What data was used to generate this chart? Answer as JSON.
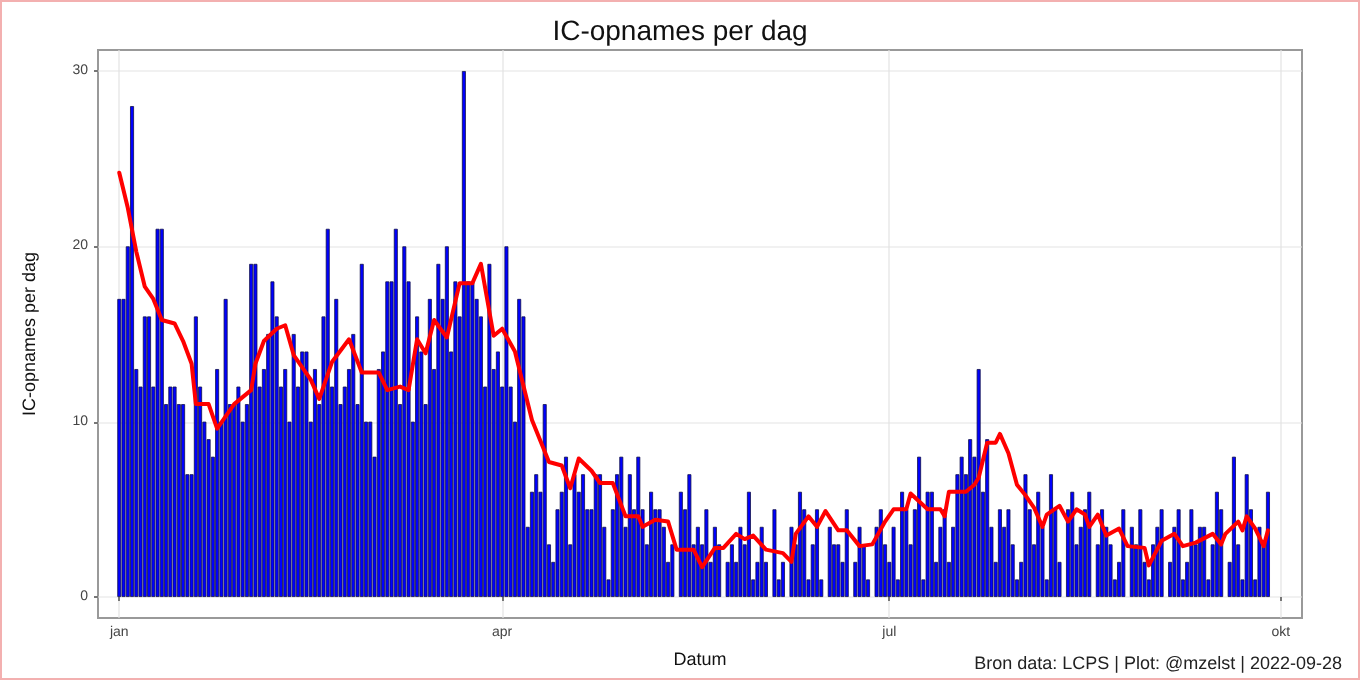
{
  "chart_data": {
    "type": "bar",
    "title": "IC-opnames per dag",
    "xlabel": "Datum",
    "ylabel": "IC-opnames per dag",
    "annotations": [
      "Bron data: LCPS | Plot: @mzelst | 2022-09-28"
    ],
    "xlim": [
      "2021-12-27",
      "2022-10-06"
    ],
    "xticks": [
      {
        "value": "2022-01-01",
        "label": "jan"
      },
      {
        "value": "2022-04-01",
        "label": "apr"
      },
      {
        "value": "2022-07-01",
        "label": "jul"
      },
      {
        "value": "2022-10-01",
        "label": "okt"
      }
    ],
    "ylim": [
      -1.2,
      31.2
    ],
    "yticks": [
      0,
      10,
      20,
      30
    ],
    "grid": true,
    "x": [
      "2022-01-01",
      "2022-01-02",
      "2022-01-03",
      "2022-01-04",
      "2022-01-05",
      "2022-01-06",
      "2022-01-07",
      "2022-01-08",
      "2022-01-09",
      "2022-01-10",
      "2022-01-11",
      "2022-01-12",
      "2022-01-13",
      "2022-01-14",
      "2022-01-15",
      "2022-01-16",
      "2022-01-17",
      "2022-01-18",
      "2022-01-19",
      "2022-01-20",
      "2022-01-21",
      "2022-01-22",
      "2022-01-23",
      "2022-01-24",
      "2022-01-25",
      "2022-01-26",
      "2022-01-27",
      "2022-01-28",
      "2022-01-29",
      "2022-01-30",
      "2022-01-31",
      "2022-02-01",
      "2022-02-02",
      "2022-02-03",
      "2022-02-04",
      "2022-02-05",
      "2022-02-06",
      "2022-02-07",
      "2022-02-08",
      "2022-02-09",
      "2022-02-10",
      "2022-02-11",
      "2022-02-12",
      "2022-02-13",
      "2022-02-14",
      "2022-02-15",
      "2022-02-16",
      "2022-02-17",
      "2022-02-18",
      "2022-02-19",
      "2022-02-20",
      "2022-02-21",
      "2022-02-22",
      "2022-02-23",
      "2022-02-24",
      "2022-02-25",
      "2022-02-26",
      "2022-02-27",
      "2022-02-28",
      "2022-03-01",
      "2022-03-02",
      "2022-03-03",
      "2022-03-04",
      "2022-03-05",
      "2022-03-06",
      "2022-03-07",
      "2022-03-08",
      "2022-03-09",
      "2022-03-10",
      "2022-03-11",
      "2022-03-12",
      "2022-03-13",
      "2022-03-14",
      "2022-03-15",
      "2022-03-16",
      "2022-03-17",
      "2022-03-18",
      "2022-03-19",
      "2022-03-20",
      "2022-03-21",
      "2022-03-22",
      "2022-03-23",
      "2022-03-24",
      "2022-03-25",
      "2022-03-26",
      "2022-03-27",
      "2022-03-28",
      "2022-03-29",
      "2022-03-30",
      "2022-03-31",
      "2022-04-01",
      "2022-04-02",
      "2022-04-03",
      "2022-04-04",
      "2022-04-05",
      "2022-04-06",
      "2022-04-07",
      "2022-04-08",
      "2022-04-09",
      "2022-04-10",
      "2022-04-11",
      "2022-04-12",
      "2022-04-13",
      "2022-04-14",
      "2022-04-15",
      "2022-04-16",
      "2022-04-17",
      "2022-04-18",
      "2022-04-19",
      "2022-04-20",
      "2022-04-21",
      "2022-04-22",
      "2022-04-23",
      "2022-04-24",
      "2022-04-25",
      "2022-04-26",
      "2022-04-27",
      "2022-04-28",
      "2022-04-29",
      "2022-04-30",
      "2022-05-01",
      "2022-05-02",
      "2022-05-03",
      "2022-05-04",
      "2022-05-05",
      "2022-05-06",
      "2022-05-07",
      "2022-05-08",
      "2022-05-09",
      "2022-05-10",
      "2022-05-11",
      "2022-05-12",
      "2022-05-13",
      "2022-05-14",
      "2022-05-15",
      "2022-05-16",
      "2022-05-17",
      "2022-05-18",
      "2022-05-19",
      "2022-05-20",
      "2022-05-21",
      "2022-05-22",
      "2022-05-23",
      "2022-05-24",
      "2022-05-25",
      "2022-05-26",
      "2022-05-27",
      "2022-05-28",
      "2022-05-29",
      "2022-05-30",
      "2022-05-31",
      "2022-06-01",
      "2022-06-02",
      "2022-06-03",
      "2022-06-04",
      "2022-06-05",
      "2022-06-06",
      "2022-06-07",
      "2022-06-08",
      "2022-06-09",
      "2022-06-10",
      "2022-06-11",
      "2022-06-12",
      "2022-06-13",
      "2022-06-14",
      "2022-06-15",
      "2022-06-16",
      "2022-06-17",
      "2022-06-18",
      "2022-06-19",
      "2022-06-20",
      "2022-06-21",
      "2022-06-22",
      "2022-06-23",
      "2022-06-24",
      "2022-06-25",
      "2022-06-26",
      "2022-06-27",
      "2022-06-28",
      "2022-06-29",
      "2022-06-30",
      "2022-07-01",
      "2022-07-02",
      "2022-07-03",
      "2022-07-04",
      "2022-07-05",
      "2022-07-06",
      "2022-07-07",
      "2022-07-08",
      "2022-07-09",
      "2022-07-10",
      "2022-07-11",
      "2022-07-12",
      "2022-07-13",
      "2022-07-14",
      "2022-07-15",
      "2022-07-16",
      "2022-07-17",
      "2022-07-18",
      "2022-07-19",
      "2022-07-20",
      "2022-07-21",
      "2022-07-22",
      "2022-07-23",
      "2022-07-24",
      "2022-07-25",
      "2022-07-26",
      "2022-07-27",
      "2022-07-28",
      "2022-07-29",
      "2022-07-30",
      "2022-07-31",
      "2022-08-01",
      "2022-08-02",
      "2022-08-03",
      "2022-08-04",
      "2022-08-05",
      "2022-08-06",
      "2022-08-07",
      "2022-08-08",
      "2022-08-09",
      "2022-08-10",
      "2022-08-11",
      "2022-08-12",
      "2022-08-13",
      "2022-08-14",
      "2022-08-15",
      "2022-08-16",
      "2022-08-17",
      "2022-08-18",
      "2022-08-19",
      "2022-08-20",
      "2022-08-21",
      "2022-08-22",
      "2022-08-23",
      "2022-08-24",
      "2022-08-25",
      "2022-08-26",
      "2022-08-27",
      "2022-08-28",
      "2022-08-29",
      "2022-08-30",
      "2022-08-31",
      "2022-09-01",
      "2022-09-02",
      "2022-09-03",
      "2022-09-04",
      "2022-09-05",
      "2022-09-06",
      "2022-09-07",
      "2022-09-08",
      "2022-09-09",
      "2022-09-10",
      "2022-09-11",
      "2022-09-12",
      "2022-09-13",
      "2022-09-14",
      "2022-09-15",
      "2022-09-16",
      "2022-09-17",
      "2022-09-18",
      "2022-09-19",
      "2022-09-20",
      "2022-09-21",
      "2022-09-22",
      "2022-09-23",
      "2022-09-24",
      "2022-09-25",
      "2022-09-26",
      "2022-09-27",
      "2022-09-28"
    ],
    "series": [
      {
        "color": "#0000ff",
        "values": [
          17,
          17,
          20,
          28,
          13,
          12,
          16,
          16,
          12,
          21,
          21,
          11,
          12,
          12,
          11,
          11,
          7,
          7,
          16,
          12,
          10,
          9,
          8,
          13,
          10,
          17,
          11,
          11,
          12,
          10,
          11,
          19,
          19,
          12,
          13,
          15,
          18,
          16,
          12,
          13,
          10,
          15,
          12,
          14,
          14,
          10,
          13,
          11,
          16,
          21,
          12,
          17,
          11,
          12,
          13,
          15,
          11,
          19,
          10,
          10,
          8,
          13,
          14,
          18,
          18,
          21,
          11,
          20,
          18,
          10,
          16,
          14,
          11,
          17,
          13,
          19,
          17,
          20,
          14,
          18,
          16,
          30,
          18,
          18,
          17,
          16,
          12,
          19,
          13,
          14,
          12,
          20,
          12,
          10,
          17,
          16,
          4,
          6,
          7,
          6,
          11,
          3,
          2,
          5,
          6,
          8,
          3,
          7,
          6,
          7,
          5,
          5,
          7,
          7,
          4,
          1,
          5,
          7,
          8,
          4,
          7,
          5,
          8,
          5,
          3,
          6,
          5,
          5,
          4,
          2,
          3,
          0,
          6,
          5,
          7,
          3,
          4,
          3,
          5,
          2,
          4,
          3,
          0,
          2,
          3,
          2,
          4,
          3,
          6,
          1,
          2,
          4,
          2,
          0,
          5,
          1,
          2,
          0,
          4,
          3,
          6,
          5,
          1,
          3,
          5,
          1,
          0,
          4,
          3,
          3,
          2,
          5,
          0,
          2,
          4,
          3,
          1,
          0,
          4,
          5,
          3,
          2,
          4,
          1,
          6,
          5,
          3,
          5,
          8,
          1,
          6,
          6,
          2,
          4,
          5,
          2,
          4,
          7,
          8,
          7,
          9,
          8,
          13,
          6,
          9,
          4,
          2,
          5,
          4,
          5,
          3,
          1,
          2,
          7,
          5,
          3,
          6,
          4,
          1,
          7,
          5,
          2,
          0,
          5,
          6,
          3,
          4,
          5,
          6,
          0,
          3,
          5,
          4,
          3,
          1,
          2,
          5,
          0,
          4,
          3,
          5,
          2,
          1,
          3,
          4,
          5,
          0,
          2,
          4,
          5,
          1,
          2,
          5,
          3,
          4,
          4,
          1,
          3,
          6,
          5,
          0,
          2,
          8,
          3,
          1,
          7,
          5,
          1,
          4,
          3,
          6
        ]
      },
      {
        "type": "line",
        "color": "#ff0000",
        "line_style": "solid",
        "marker": "none",
        "x": [
          "2022-01-01",
          "2022-01-03",
          "2022-01-05",
          "2022-01-07",
          "2022-01-09",
          "2022-01-11",
          "2022-01-14",
          "2022-01-16",
          "2022-01-18",
          "2022-01-19",
          "2022-01-22",
          "2022-01-24",
          "2022-01-26",
          "2022-01-28",
          "2022-02-01",
          "2022-02-02",
          "2022-02-04",
          "2022-02-07",
          "2022-02-09",
          "2022-02-11",
          "2022-02-15",
          "2022-02-17",
          "2022-02-20",
          "2022-02-24",
          "2022-02-27",
          "2022-03-03",
          "2022-03-05",
          "2022-03-08",
          "2022-03-10",
          "2022-03-12",
          "2022-03-14",
          "2022-03-16",
          "2022-03-19",
          "2022-03-22",
          "2022-03-25",
          "2022-03-27",
          "2022-03-30",
          "2022-04-01",
          "2022-04-04",
          "2022-04-08",
          "2022-04-12",
          "2022-04-15",
          "2022-04-17",
          "2022-04-19",
          "2022-04-22",
          "2022-04-24",
          "2022-04-27",
          "2022-04-30",
          "2022-05-03",
          "2022-05-04",
          "2022-05-07",
          "2022-05-10",
          "2022-05-12",
          "2022-05-16",
          "2022-05-18",
          "2022-05-21",
          "2022-05-23",
          "2022-05-26",
          "2022-05-28",
          "2022-05-30",
          "2022-06-02",
          "2022-06-06",
          "2022-06-08",
          "2022-06-09",
          "2022-06-12",
          "2022-06-14",
          "2022-06-16",
          "2022-06-19",
          "2022-06-21",
          "2022-06-24",
          "2022-06-27",
          "2022-06-30",
          "2022-07-02",
          "2022-07-05",
          "2022-07-06",
          "2022-07-10",
          "2022-07-13",
          "2022-07-14",
          "2022-07-15",
          "2022-07-19",
          "2022-07-21",
          "2022-07-22",
          "2022-07-24",
          "2022-07-26",
          "2022-07-27",
          "2022-07-29",
          "2022-07-31",
          "2022-08-02",
          "2022-08-04",
          "2022-08-06",
          "2022-08-07",
          "2022-08-10",
          "2022-08-12",
          "2022-08-14",
          "2022-08-16",
          "2022-08-17",
          "2022-08-19",
          "2022-08-21",
          "2022-08-24",
          "2022-08-26",
          "2022-08-30",
          "2022-08-31",
          "2022-09-03",
          "2022-09-06",
          "2022-09-08",
          "2022-09-11",
          "2022-09-15",
          "2022-09-17",
          "2022-09-18",
          "2022-09-21",
          "2022-09-22",
          "2022-09-23",
          "2022-09-25",
          "2022-09-27",
          "2022-09-28"
        ],
        "values": [
          24.2,
          22.2,
          19.7,
          17.7,
          17,
          15.8,
          15.6,
          14.6,
          13.3,
          11,
          11,
          9.6,
          10.3,
          11,
          11.8,
          13.3,
          14.6,
          15.3,
          15.5,
          13.8,
          12.4,
          11.3,
          13.4,
          14.7,
          12.8,
          12.8,
          11.8,
          12,
          11.8,
          14.7,
          13.9,
          15.8,
          14.8,
          17.9,
          17.9,
          19,
          14.9,
          15.3,
          14,
          10.1,
          7.7,
          7.5,
          6.2,
          7.9,
          7.2,
          6.5,
          6.5,
          4.6,
          4.6,
          4,
          4.4,
          4.3,
          2.7,
          2.7,
          1.7,
          2.8,
          2.8,
          3.6,
          3.3,
          3.5,
          2.7,
          2.5,
          2,
          3.6,
          4.6,
          4,
          4.9,
          3.8,
          3.8,
          2.9,
          3,
          4.3,
          5,
          5,
          5.9,
          5,
          5,
          4.6,
          6,
          6,
          6.4,
          6.8,
          8.8,
          8.8,
          9.3,
          8.2,
          6.4,
          5.8,
          5.1,
          4,
          4.7,
          5.2,
          4.3,
          5,
          4.7,
          4,
          4.7,
          3.5,
          3.9,
          2.9,
          2.8,
          1.8,
          3.2,
          3.6,
          2.9,
          3.1,
          3.6,
          3,
          3.6,
          4.3,
          3.8,
          4.6,
          3.9,
          2.9,
          3.8
        ]
      }
    ]
  }
}
